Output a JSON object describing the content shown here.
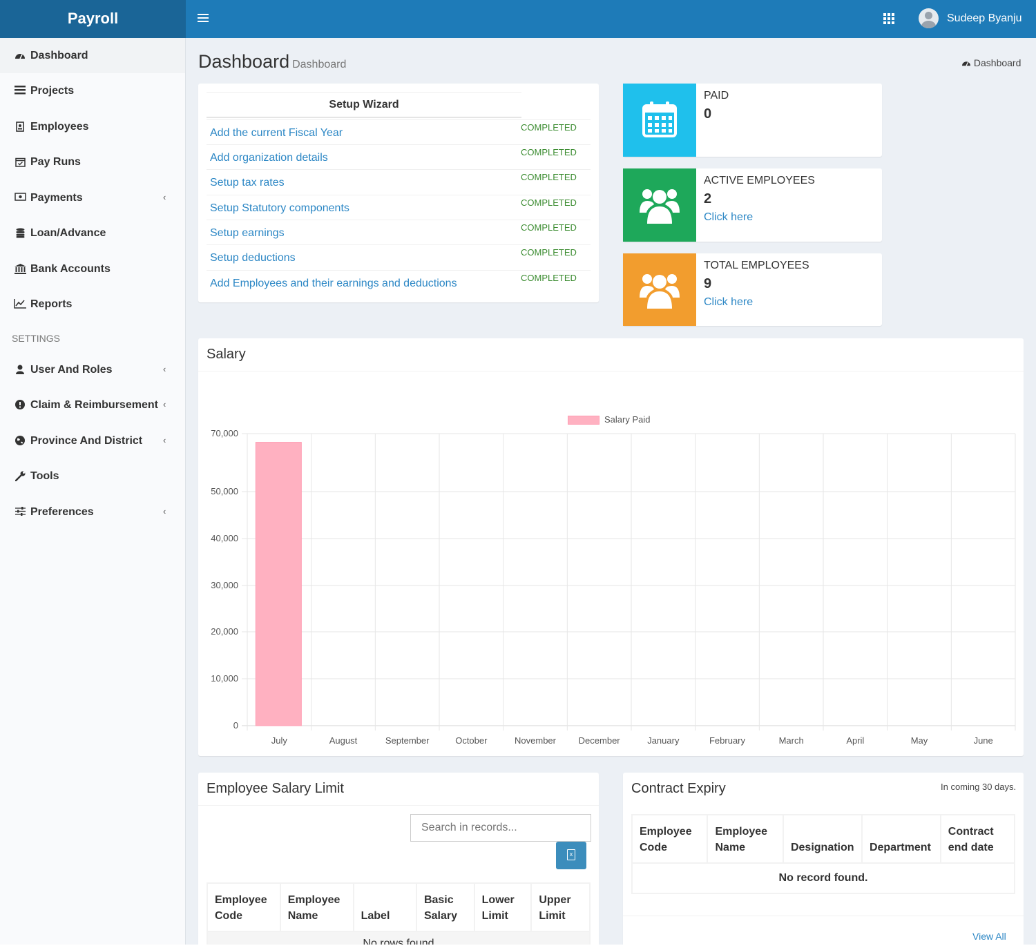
{
  "app": {
    "title": "Payroll",
    "user_name": "Sudeep Byanju"
  },
  "sidebar": {
    "items": [
      {
        "label": "Dashboard",
        "icon": "dashboard-icon"
      },
      {
        "label": "Projects",
        "icon": "list-icon"
      },
      {
        "label": "Employees",
        "icon": "id-card-icon"
      },
      {
        "label": "Pay Runs",
        "icon": "calendar-check-icon"
      },
      {
        "label": "Payments",
        "icon": "money-icon"
      },
      {
        "label": "Loan/Advance",
        "icon": "database-icon"
      },
      {
        "label": "Bank Accounts",
        "icon": "bank-icon"
      },
      {
        "label": "Reports",
        "icon": "line-chart-icon"
      }
    ],
    "settings_header": "SETTINGS",
    "settings_items": [
      {
        "label": "User And Roles",
        "icon": "user-icon"
      },
      {
        "label": "Claim & Reimbursement",
        "icon": "exclamation-circle-icon"
      },
      {
        "label": "Province And District",
        "icon": "globe-icon"
      },
      {
        "label": "Tools",
        "icon": "wrench-icon"
      },
      {
        "label": "Preferences",
        "icon": "sliders-icon"
      }
    ]
  },
  "page": {
    "title": "Dashboard",
    "subtitle": "Dashboard",
    "breadcrumb": "Dashboard"
  },
  "setup_wizard": {
    "title": "Setup Wizard",
    "steps": [
      {
        "label": "Add the current Fiscal Year",
        "status": "COMPLETED"
      },
      {
        "label": "Add organization details",
        "status": "COMPLETED"
      },
      {
        "label": "Setup tax rates",
        "status": "COMPLETED"
      },
      {
        "label": "Setup Statutory components",
        "status": "COMPLETED"
      },
      {
        "label": "Setup earnings",
        "status": "COMPLETED"
      },
      {
        "label": "Setup deductions",
        "status": "COMPLETED"
      },
      {
        "label": "Add Employees and their earnings and deductions",
        "status": "COMPLETED"
      }
    ]
  },
  "info_boxes": [
    {
      "title": "PAID",
      "value": "0",
      "link": "",
      "color": "#1fc0ec",
      "icon": "calendar-icon"
    },
    {
      "title": "ACTIVE EMPLOYEES",
      "value": "2",
      "link": "Click here",
      "color": "#1ea85a",
      "icon": "users-icon"
    },
    {
      "title": "TOTAL EMPLOYEES",
      "value": "9",
      "link": "Click here",
      "color": "#f29d2e",
      "icon": "users-icon"
    }
  ],
  "salary": {
    "title": "Salary"
  },
  "chart_data": {
    "type": "bar",
    "categories": [
      "July",
      "August",
      "September",
      "October",
      "November",
      "December",
      "January",
      "February",
      "March",
      "April",
      "May",
      "June"
    ],
    "series": [
      {
        "name": "Salary Paid",
        "values": [
          67000,
          0,
          0,
          0,
          0,
          0,
          0,
          0,
          0,
          0,
          0,
          0
        ],
        "color": "#ffb1c1"
      }
    ],
    "y_ticks": [
      "0",
      "10,000",
      "20,000",
      "30,000",
      "40,000",
      "50,000",
      "70,000"
    ],
    "grid": true,
    "legend": "top-center"
  },
  "salary_limit": {
    "title": "Employee Salary Limit",
    "search_placeholder": "Search in records...",
    "columns": [
      [
        "Employee",
        "Code"
      ],
      [
        "Employee",
        "Name"
      ],
      [
        "",
        "Label"
      ],
      [
        "Basic",
        "Salary"
      ],
      [
        "Lower",
        "Limit"
      ],
      [
        "Upper",
        "Limit"
      ]
    ],
    "empty_text": "No rows found"
  },
  "contract_expiry": {
    "title": "Contract Expiry",
    "subtitle": "In coming 30 days.",
    "columns": [
      [
        "Employee",
        "Code"
      ],
      [
        "Employee",
        "Name"
      ],
      [
        "",
        "Designation"
      ],
      [
        "",
        "Department"
      ],
      [
        "Contract",
        "end date"
      ]
    ],
    "empty_text": "No record found.",
    "view_all": "View All"
  }
}
